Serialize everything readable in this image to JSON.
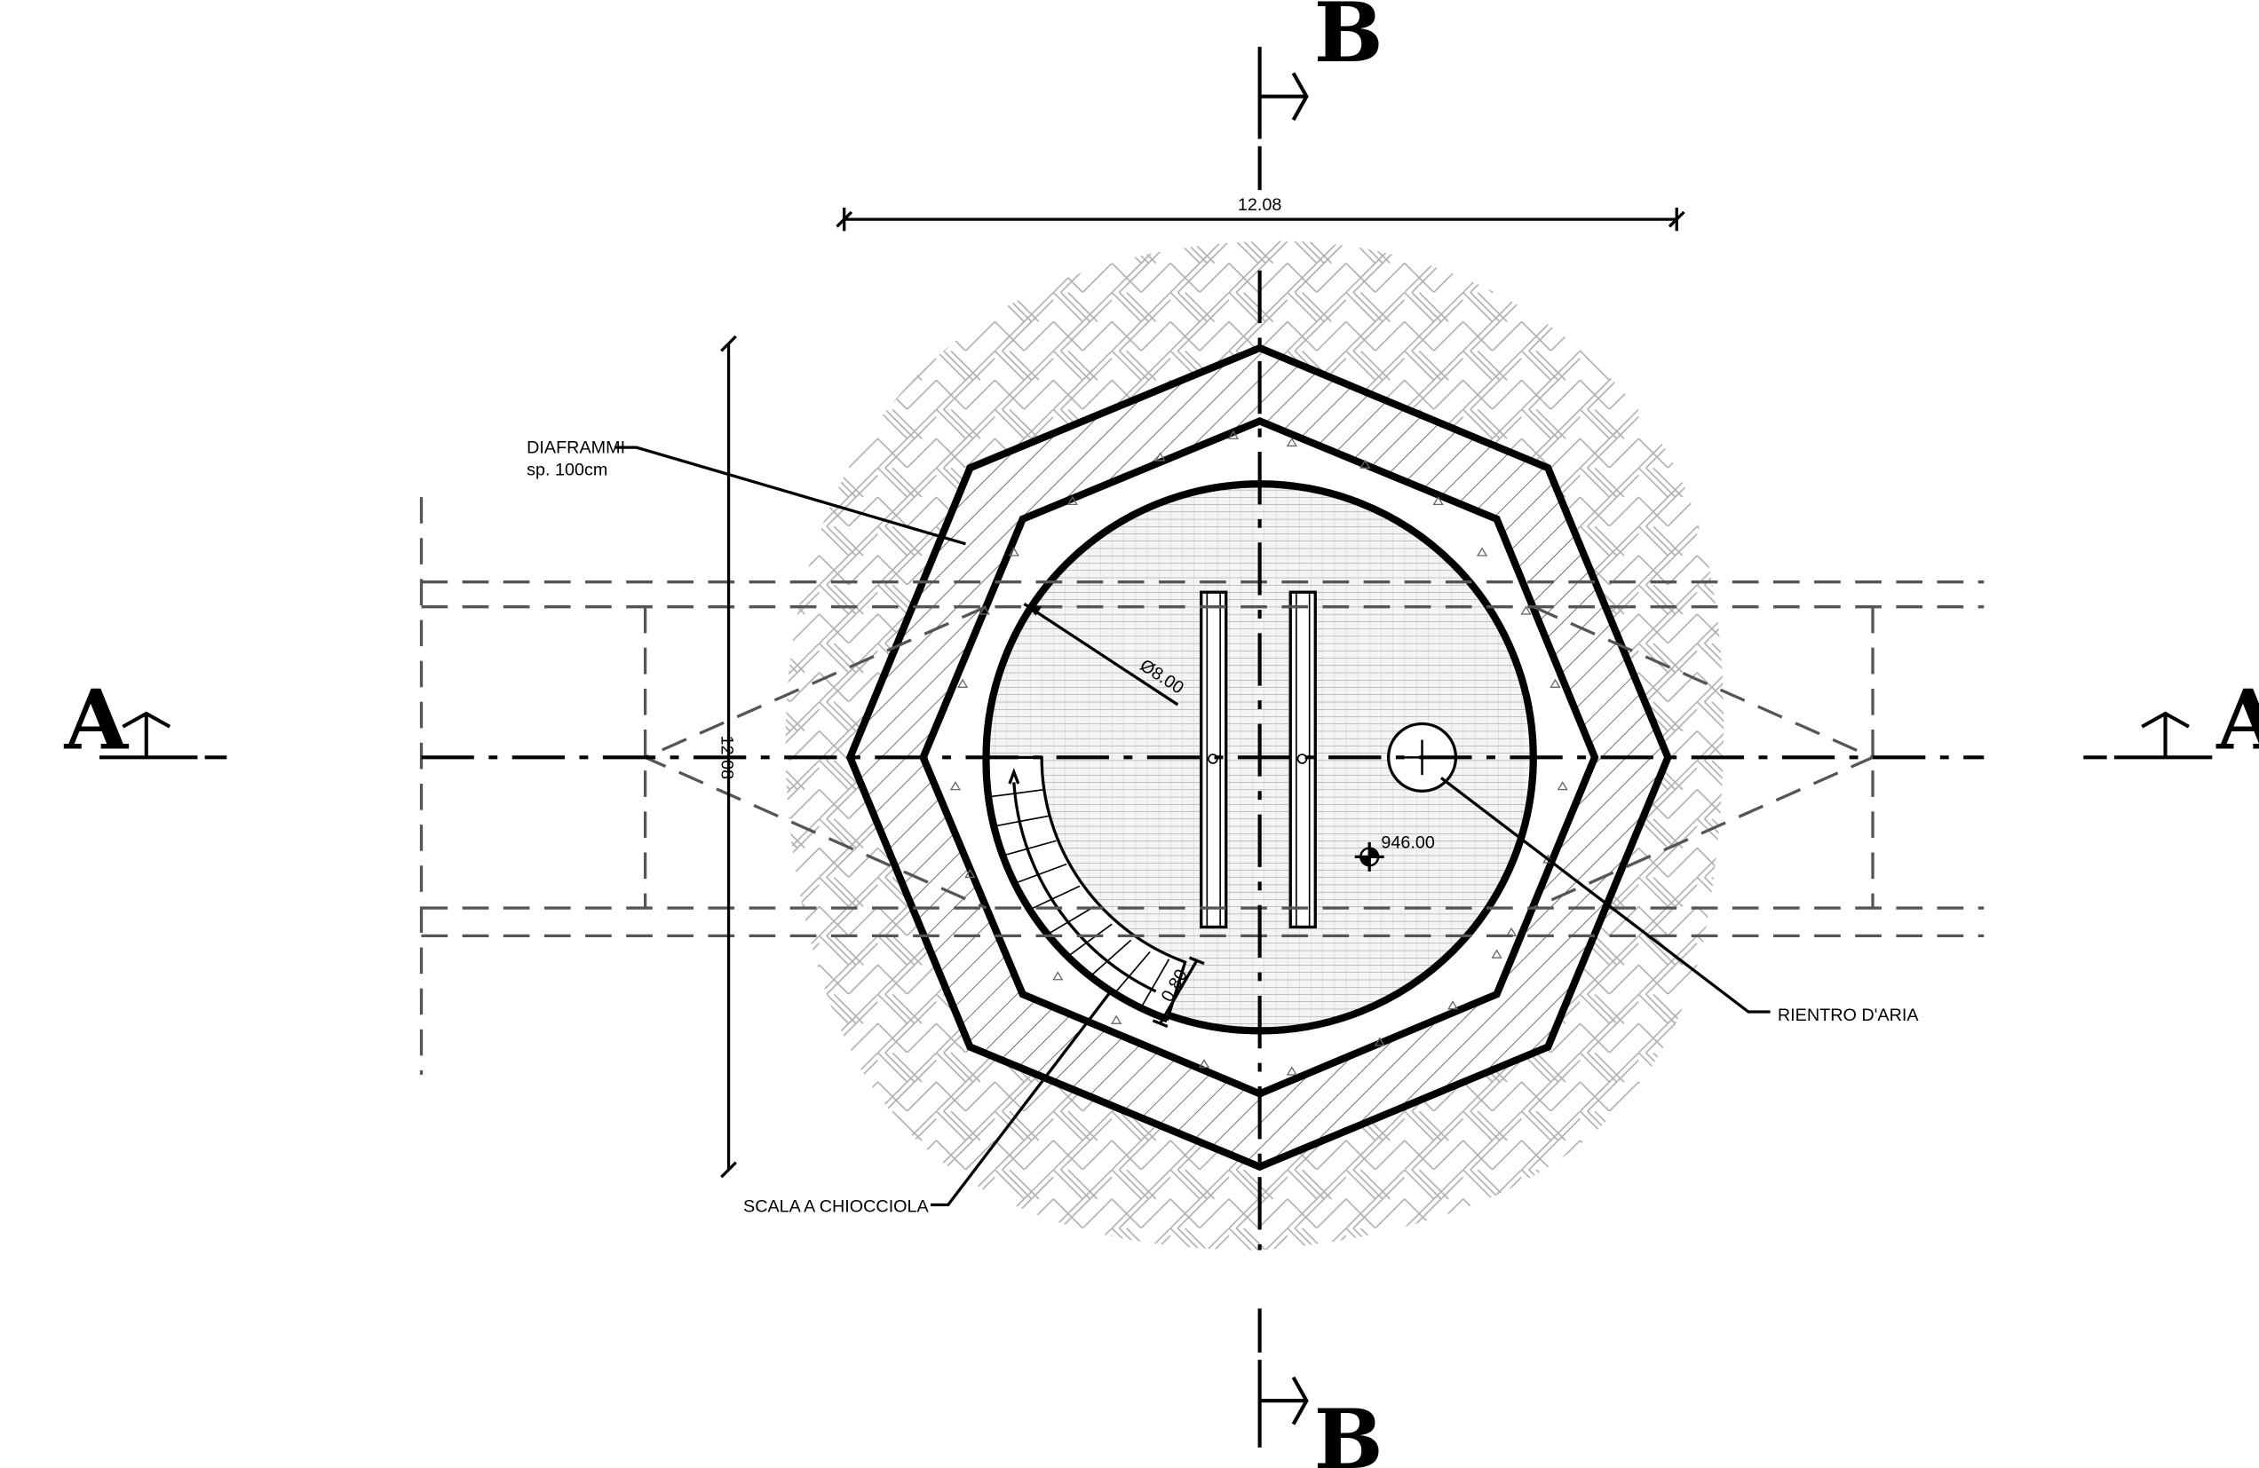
{
  "dimensions": {
    "width_label": "12.08",
    "height_label": "12.08",
    "inner_diameter_label": "Ø8.00",
    "stair_width_label": "0.80",
    "elevation_label": "946.00"
  },
  "annotations": {
    "diaphragm_line1": "DIAFRAMMI",
    "diaphragm_line2": "sp. 100cm",
    "air_return": "RIENTRO D'ARIA",
    "spiral_stair": "SCALA A CHIOCCIOLA"
  },
  "sections": {
    "a_left": "A",
    "a_right": "A",
    "b_top": "B",
    "b_bottom": "B"
  }
}
